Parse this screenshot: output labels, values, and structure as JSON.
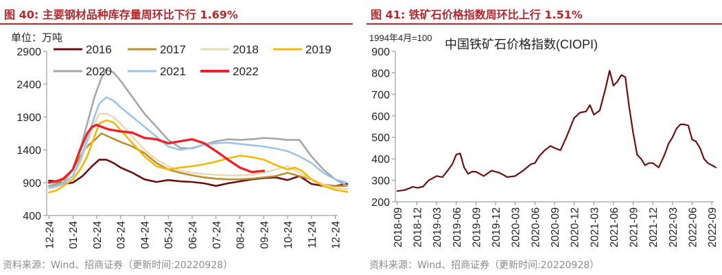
{
  "panels": {
    "left": {
      "title": "图 40: 主要钢材品种库存量周环比下行 1.69%",
      "source": "资料来源：Wind、招商证券（更新时间:20220928）"
    },
    "right": {
      "title": "图 41: 铁矿石价格指数周环比上行 1.51%",
      "source": "资料来源：Wind、招商证券（更新时间:20220928）"
    }
  },
  "chart_data": [
    {
      "type": "line",
      "unit_label": "单位：万吨",
      "ylim": [
        400,
        2900
      ],
      "yticks": [
        400,
        900,
        1400,
        1900,
        2400,
        2900
      ],
      "categories": [
        "12-24",
        "01-24",
        "02-24",
        "03-24",
        "04-24",
        "05-24",
        "06-24",
        "07-24",
        "08-24",
        "09-24",
        "10-24",
        "11-24",
        "12-24"
      ],
      "series": [
        {
          "name": "2016",
          "color": "#6b0f0f",
          "x": [
            0,
            0.3,
            0.6,
            1,
            1.4,
            1.8,
            2.1,
            2.4,
            2.7,
            3,
            3.5,
            4,
            4.5,
            5,
            5.5,
            6,
            6.5,
            7,
            7.5,
            8,
            8.5,
            9,
            9.5,
            10,
            10.5,
            11,
            11.5,
            12,
            12.5
          ],
          "values": [
            930,
            920,
            880,
            900,
            1000,
            1150,
            1250,
            1250,
            1200,
            1130,
            1050,
            950,
            910,
            940,
            920,
            910,
            890,
            850,
            890,
            920,
            950,
            970,
            980,
            940,
            1000,
            880,
            850,
            850,
            880
          ]
        },
        {
          "name": "2017",
          "color": "#b8902e",
          "x": [
            0,
            0.3,
            0.6,
            1,
            1.3,
            1.6,
            2,
            2.2,
            2.5,
            3,
            3.5,
            4,
            4.5,
            5,
            5.5,
            6,
            6.5,
            7,
            7.5,
            8,
            8.5,
            9,
            9.5,
            10,
            10.5,
            11,
            11.5,
            12,
            12.5
          ],
          "values": [
            850,
            880,
            950,
            1100,
            1300,
            1450,
            1580,
            1650,
            1600,
            1520,
            1450,
            1350,
            1200,
            1100,
            1050,
            1010,
            980,
            960,
            950,
            950,
            960,
            980,
            1000,
            1050,
            1000,
            950,
            870,
            850,
            850
          ]
        },
        {
          "name": "2018",
          "color": "#ead9b3",
          "x": [
            0,
            0.3,
            0.6,
            1,
            1.3,
            1.6,
            1.9,
            2.1,
            2.4,
            2.7,
            3,
            3.5,
            4,
            4.5,
            5,
            5.5,
            6,
            6.5,
            7,
            7.5,
            8,
            8.5,
            9,
            9.5,
            10,
            10.5,
            11,
            11.5,
            12,
            12.5
          ],
          "values": [
            820,
            850,
            900,
            1000,
            1200,
            1500,
            1800,
            1950,
            1950,
            1900,
            1800,
            1600,
            1400,
            1250,
            1150,
            1080,
            1050,
            1030,
            1020,
            1010,
            1010,
            1020,
            1050,
            1100,
            1150,
            1050,
            950,
            870,
            820,
            800
          ]
        },
        {
          "name": "2019",
          "color": "#f5b700",
          "x": [
            0,
            0.3,
            0.6,
            1,
            1.3,
            1.6,
            1.9,
            2.1,
            2.4,
            2.7,
            3,
            3.5,
            4,
            4.5,
            5,
            5.5,
            6,
            6.5,
            7,
            7.5,
            8,
            8.5,
            9,
            9.5,
            10,
            10.3,
            10.6,
            11,
            11.5,
            12,
            12.5
          ],
          "values": [
            750,
            780,
            850,
            950,
            1100,
            1300,
            1600,
            1800,
            1850,
            1820,
            1700,
            1500,
            1300,
            1150,
            1100,
            1130,
            1150,
            1180,
            1220,
            1270,
            1310,
            1290,
            1250,
            1170,
            1100,
            1130,
            1080,
            950,
            850,
            790,
            760
          ]
        },
        {
          "name": "2020",
          "color": "#a6a6a6",
          "x": [
            0,
            0.3,
            0.6,
            1,
            1.3,
            1.6,
            1.9,
            2.2,
            2.4,
            2.7,
            3,
            3.5,
            4,
            4.5,
            5,
            5.5,
            6,
            6.5,
            7,
            7.5,
            8,
            8.5,
            9,
            9.5,
            10,
            10.5,
            11,
            11.5,
            12,
            12.5
          ],
          "values": [
            850,
            870,
            900,
            1100,
            1400,
            1800,
            2200,
            2500,
            2620,
            2580,
            2450,
            2200,
            1950,
            1750,
            1550,
            1430,
            1420,
            1480,
            1530,
            1560,
            1550,
            1560,
            1580,
            1570,
            1550,
            1550,
            1300,
            1100,
            950,
            850
          ]
        },
        {
          "name": "2021",
          "color": "#9dc3e6",
          "x": [
            0,
            0.3,
            0.6,
            1,
            1.3,
            1.6,
            1.9,
            2.1,
            2.4,
            2.7,
            3,
            3.5,
            4,
            4.5,
            5,
            5.5,
            6,
            6.5,
            7,
            7.5,
            8,
            8.5,
            9,
            9.5,
            10,
            10.5,
            11,
            11.5,
            12,
            12.5
          ],
          "values": [
            820,
            840,
            880,
            1000,
            1250,
            1550,
            1900,
            2100,
            2200,
            2150,
            2050,
            1900,
            1750,
            1600,
            1450,
            1400,
            1430,
            1480,
            1500,
            1510,
            1490,
            1470,
            1450,
            1420,
            1380,
            1300,
            1200,
            1050,
            950,
            900
          ]
        },
        {
          "name": "2022",
          "color": "#e8232b",
          "x": [
            0,
            0.3,
            0.6,
            1,
            1.3,
            1.6,
            1.8,
            2,
            2.2,
            2.5,
            3,
            3.5,
            4,
            4.5,
            5,
            5.5,
            6,
            6.5,
            7,
            7.5,
            8,
            8.5,
            9
          ],
          "values": [
            900,
            920,
            960,
            1100,
            1400,
            1650,
            1750,
            1780,
            1750,
            1710,
            1680,
            1660,
            1580,
            1560,
            1500,
            1530,
            1560,
            1500,
            1380,
            1250,
            1130,
            1060,
            1080
          ]
        }
      ]
    },
    {
      "type": "line",
      "title": "中国铁矿石价格指数(CIOPI)",
      "note": "1994年4月=100",
      "ylim": [
        200,
        900
      ],
      "yticks": [
        200,
        300,
        400,
        500,
        600,
        700,
        800,
        900
      ],
      "categories": [
        "2018-09",
        "2018-12",
        "2019-03",
        "2019-06",
        "2019-09",
        "2019-12",
        "2020-03",
        "2020-06",
        "2020-09",
        "2020-12",
        "2021-03",
        "2021-06",
        "2021-09",
        "2021-12",
        "2022-03",
        "2022-06",
        "2022-09"
      ],
      "series": [
        {
          "name": "中国铁矿石价格指数(CIOPI)",
          "color": "#6b0f0f",
          "x": [
            0,
            0.4,
            0.8,
            1,
            1.3,
            1.6,
            2,
            2.3,
            2.6,
            2.8,
            3,
            3.2,
            3.4,
            3.6,
            3.8,
            4,
            4.4,
            4.8,
            5.2,
            5.6,
            6,
            6.4,
            6.8,
            7,
            7.2,
            7.5,
            7.8,
            8,
            8.3,
            8.6,
            9,
            9.3,
            9.6,
            9.8,
            10,
            10.3,
            10.6,
            10.8,
            11,
            11.2,
            11.4,
            11.6,
            11.8,
            12,
            12.2,
            12.4,
            12.6,
            12.8,
            13,
            13.3,
            13.6,
            13.8,
            14,
            14.2,
            14.4,
            14.6,
            14.8,
            15,
            15.2,
            15.4,
            15.6,
            15.8,
            16,
            16.2
          ],
          "values": [
            250,
            255,
            270,
            265,
            270,
            300,
            320,
            315,
            350,
            375,
            420,
            425,
            360,
            330,
            340,
            340,
            320,
            345,
            335,
            315,
            320,
            345,
            375,
            380,
            410,
            440,
            460,
            450,
            440,
            500,
            590,
            615,
            620,
            650,
            605,
            625,
            730,
            810,
            740,
            760,
            790,
            780,
            640,
            520,
            420,
            400,
            370,
            380,
            380,
            360,
            420,
            470,
            500,
            540,
            560,
            560,
            555,
            490,
            480,
            450,
            400,
            380,
            370,
            360
          ]
        }
      ]
    }
  ]
}
